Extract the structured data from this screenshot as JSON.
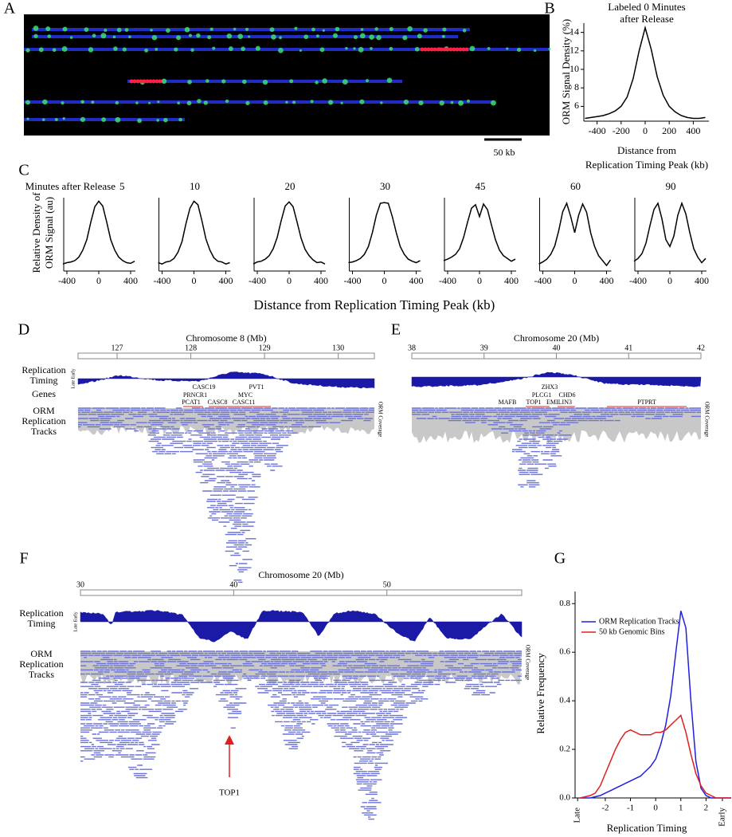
{
  "panel_labels": [
    "A",
    "B",
    "C",
    "D",
    "E",
    "F",
    "G"
  ],
  "panel_a": {
    "scale_bar": "50 kb"
  },
  "panel_c": {
    "prefix": "Minutes after Release",
    "x_label": "Distance from Replication Timing Peak (kb)",
    "y_label": [
      "Relative Density of",
      "ORM Signal (au)"
    ]
  },
  "panel_d": {
    "title": "Chromosome 8 (Mb)",
    "xlim": [
      126.47,
      130.49
    ],
    "xticks": [
      127,
      128,
      129,
      130
    ],
    "track_labels": {
      "timing": [
        "Replication",
        "Timing"
      ],
      "timing_scale": "Late Early",
      "genes": "Genes",
      "orm": [
        "ORM",
        "Replication",
        "Tracks"
      ]
    },
    "coverage": "ORM Coverage",
    "genes": [
      "CASC19",
      "PRNCR1",
      "PCAT1",
      "CASC8",
      "PVT1",
      "MYC",
      "CASC11"
    ]
  },
  "panel_e": {
    "title": "Chromosome 20 (Mb)",
    "xlim": [
      38,
      42
    ],
    "xticks": [
      38,
      39,
      40,
      41,
      42
    ],
    "coverage": "ORM Coverage",
    "genes": [
      "ZHX3",
      "PLCG1",
      "CHD6",
      "MAFB",
      "TOP1",
      "EMILIN3",
      "PTPRT"
    ]
  },
  "panel_f": {
    "title": "Chromosome 20 (Mb)",
    "xlim": [
      30,
      58.8
    ],
    "xticks": [
      30,
      40,
      50
    ],
    "track_labels": {
      "timing": [
        "Replication",
        "Timing"
      ],
      "timing_scale": "Late Early",
      "orm": [
        "ORM",
        "Replication",
        "Tracks"
      ]
    },
    "coverage": "ORM Coverage",
    "annotation": "TOP1"
  },
  "chart_data": [
    {
      "type": "line",
      "title": [
        "Labeled 0 Minutes",
        "after Release"
      ],
      "x_label": [
        "Distance from",
        "Replication Timing Peak (kb)"
      ],
      "y_label": "ORM Signal Density (%)",
      "x": [
        -500,
        -450,
        -400,
        -350,
        -300,
        -250,
        -200,
        -150,
        -100,
        -50,
        0,
        50,
        100,
        150,
        200,
        250,
        300,
        350,
        400,
        450,
        500
      ],
      "values": [
        4.7,
        4.8,
        4.9,
        5.0,
        5.2,
        5.5,
        6.0,
        7.0,
        9.0,
        12.0,
        14.5,
        12.2,
        9.2,
        7.2,
        6.0,
        5.4,
        5.0,
        4.8,
        4.7,
        4.7,
        4.8
      ],
      "color": "#000000",
      "xlim": [
        -510,
        530
      ],
      "ylim": [
        4.4,
        15
      ],
      "xticks": [
        -400,
        -200,
        0,
        200,
        400
      ],
      "yticks": [
        6,
        8,
        10,
        12,
        14
      ]
    },
    {
      "type": "line",
      "title": "5",
      "x": [
        -450,
        -400,
        -350,
        -300,
        -250,
        -200,
        -150,
        -100,
        -50,
        0,
        50,
        100,
        150,
        200,
        250,
        300,
        350,
        400,
        450
      ],
      "values": [
        0.1,
        0.12,
        0.13,
        0.15,
        0.2,
        0.3,
        0.45,
        0.7,
        0.92,
        1.0,
        0.93,
        0.7,
        0.45,
        0.3,
        0.2,
        0.15,
        0.12,
        0.11,
        0.14
      ],
      "color": "#000000",
      "xlim": [
        -440,
        460
      ],
      "ylim": [
        0,
        1.05
      ],
      "xticks": [
        -400,
        0,
        400
      ]
    },
    {
      "type": "line",
      "title": "10",
      "x": [
        -450,
        -400,
        -350,
        -300,
        -250,
        -200,
        -150,
        -100,
        -50,
        0,
        50,
        100,
        150,
        200,
        250,
        300,
        350,
        400,
        450
      ],
      "values": [
        0.12,
        0.1,
        0.13,
        0.14,
        0.18,
        0.27,
        0.42,
        0.68,
        0.9,
        1.0,
        0.95,
        0.72,
        0.46,
        0.3,
        0.19,
        0.14,
        0.13,
        0.1,
        0.12
      ],
      "color": "#000000",
      "xlim": [
        -440,
        460
      ],
      "ylim": [
        0,
        1.05
      ],
      "xticks": [
        -400,
        0,
        400
      ]
    },
    {
      "type": "line",
      "title": "20",
      "x": [
        -450,
        -400,
        -350,
        -300,
        -250,
        -200,
        -150,
        -100,
        -50,
        0,
        50,
        100,
        150,
        200,
        250,
        300,
        350,
        400,
        450
      ],
      "values": [
        0.1,
        0.13,
        0.14,
        0.17,
        0.22,
        0.32,
        0.48,
        0.72,
        0.93,
        0.99,
        0.92,
        0.7,
        0.47,
        0.31,
        0.22,
        0.16,
        0.12,
        0.13,
        0.1
      ],
      "color": "#000000",
      "xlim": [
        -440,
        460
      ],
      "ylim": [
        0,
        1.05
      ],
      "xticks": [
        -400,
        0,
        400
      ]
    },
    {
      "type": "line",
      "title": "30",
      "x": [
        -450,
        -400,
        -350,
        -300,
        -250,
        -200,
        -150,
        -100,
        -50,
        0,
        50,
        100,
        150,
        200,
        250,
        300,
        350,
        400,
        450
      ],
      "values": [
        0.12,
        0.13,
        0.15,
        0.18,
        0.24,
        0.35,
        0.55,
        0.8,
        0.97,
        0.98,
        0.97,
        0.78,
        0.55,
        0.35,
        0.24,
        0.17,
        0.14,
        0.12,
        0.15
      ],
      "color": "#000000",
      "xlim": [
        -440,
        460
      ],
      "ylim": [
        0,
        1.05
      ],
      "xticks": [
        -400,
        0,
        400
      ]
    },
    {
      "type": "line",
      "title": "45",
      "x": [
        -450,
        -400,
        -350,
        -300,
        -250,
        -200,
        -150,
        -100,
        -50,
        0,
        50,
        100,
        150,
        200,
        250,
        300,
        350,
        400,
        450
      ],
      "values": [
        0.15,
        0.17,
        0.2,
        0.24,
        0.32,
        0.48,
        0.7,
        0.9,
        0.95,
        0.78,
        0.96,
        0.88,
        0.66,
        0.45,
        0.3,
        0.22,
        0.18,
        0.14,
        0.17
      ],
      "color": "#000000",
      "xlim": [
        -440,
        460
      ],
      "ylim": [
        0,
        1.05
      ],
      "xticks": [
        -400,
        0,
        400
      ]
    },
    {
      "type": "line",
      "title": "60",
      "x": [
        -450,
        -400,
        -350,
        -300,
        -250,
        -200,
        -150,
        -100,
        -50,
        0,
        50,
        100,
        150,
        200,
        250,
        300,
        350,
        400,
        450
      ],
      "values": [
        0.1,
        0.13,
        0.17,
        0.24,
        0.36,
        0.58,
        0.85,
        0.97,
        0.78,
        0.55,
        0.8,
        0.96,
        0.84,
        0.55,
        0.35,
        0.22,
        0.15,
        0.08,
        0.16
      ],
      "color": "#000000",
      "xlim": [
        -440,
        460
      ],
      "ylim": [
        0,
        1.05
      ],
      "xticks": [
        -400,
        0,
        400
      ]
    },
    {
      "type": "line",
      "title": "90",
      "x": [
        -450,
        -400,
        -350,
        -300,
        -250,
        -200,
        -150,
        -100,
        -50,
        0,
        50,
        100,
        150,
        200,
        250,
        300,
        350,
        400,
        450
      ],
      "values": [
        0.14,
        0.18,
        0.25,
        0.4,
        0.65,
        0.88,
        0.97,
        0.75,
        0.45,
        0.35,
        0.5,
        0.8,
        0.97,
        0.82,
        0.55,
        0.32,
        0.2,
        0.12,
        0.18
      ],
      "color": "#000000",
      "xlim": [
        -440,
        460
      ],
      "ylim": [
        0,
        1.05
      ],
      "xticks": [
        -400,
        0,
        400
      ]
    },
    {
      "type": "line",
      "x_label": "Replication Timing",
      "y_label": "Relative Frequency",
      "x": [
        -3,
        -2.8,
        -2.6,
        -2.4,
        -2.2,
        -2,
        -1.8,
        -1.6,
        -1.4,
        -1.2,
        -1,
        -0.8,
        -0.6,
        -0.4,
        -0.2,
        0,
        0.2,
        0.4,
        0.6,
        0.8,
        1,
        1.2,
        1.4,
        1.6,
        1.8,
        2,
        2.2,
        2.4,
        2.6,
        2.8,
        3
      ],
      "series": [
        {
          "name": "ORM Replication Tracks",
          "color": "#2020e0",
          "values": [
            0,
            0,
            0,
            0.005,
            0.01,
            0.02,
            0.03,
            0.04,
            0.05,
            0.06,
            0.07,
            0.08,
            0.09,
            0.11,
            0.13,
            0.16,
            0.22,
            0.3,
            0.42,
            0.6,
            0.77,
            0.7,
            0.4,
            0.15,
            0.04,
            0.01,
            0,
            0,
            0,
            0,
            0
          ]
        },
        {
          "name": "50 kb Genomic Bins",
          "color": "#e02020",
          "values": [
            0,
            0.005,
            0.01,
            0.02,
            0.05,
            0.1,
            0.15,
            0.2,
            0.24,
            0.27,
            0.28,
            0.27,
            0.26,
            0.26,
            0.26,
            0.27,
            0.27,
            0.28,
            0.3,
            0.32,
            0.34,
            0.27,
            0.18,
            0.1,
            0.05,
            0.02,
            0.01,
            0,
            0,
            0,
            0
          ]
        }
      ],
      "xlim": [
        -3.2,
        3.0
      ],
      "ylim": [
        0,
        0.85
      ],
      "xticks": [
        {
          "value": -3.1,
          "label": "Late"
        },
        -2,
        -1,
        0,
        1,
        2,
        {
          "value": 2.65,
          "label": "Early"
        }
      ],
      "yticks": [
        {
          "value": 0,
          "label": "0.0"
        },
        0.2,
        0.4,
        0.6,
        0.8
      ],
      "legend": "upper left"
    }
  ]
}
